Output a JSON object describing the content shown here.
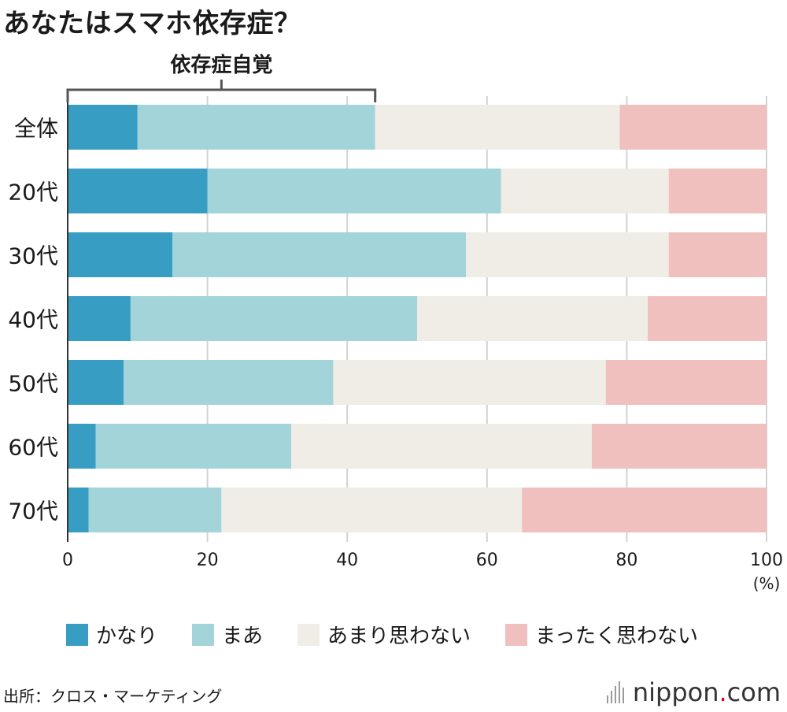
{
  "title": "あなたはスマホ依存症？",
  "chart_data": {
    "type": "bar",
    "orientation": "horizontal",
    "stacked": true,
    "categories": [
      "全体",
      "20代",
      "30代",
      "40代",
      "50代",
      "60代",
      "70代"
    ],
    "series": [
      {
        "name": "かなり",
        "color": "#379dc3",
        "values": [
          10,
          20,
          15,
          9,
          8,
          4,
          3
        ]
      },
      {
        "name": "まあ",
        "color": "#a2d4da",
        "values": [
          34,
          42,
          42,
          41,
          30,
          28,
          19
        ]
      },
      {
        "name": "あまり思わない",
        "color": "#f0ece6",
        "values": [
          35,
          24,
          29,
          33,
          39,
          43,
          43
        ]
      },
      {
        "name": "まったく思わない",
        "color": "#f0c0bf",
        "values": [
          21,
          14,
          14,
          17,
          23,
          25,
          35
        ]
      }
    ],
    "xlim": [
      0,
      100
    ],
    "xticks": [
      0,
      20,
      40,
      60,
      80,
      100
    ],
    "xlabel": "(%)",
    "grid": true,
    "annotation": {
      "label": "依存症自覚",
      "from": 0,
      "to": 44
    }
  },
  "source": "出所：クロス・マーケティング",
  "brand": {
    "text": "nippon",
    "dot": ".",
    "suffix": "com"
  }
}
